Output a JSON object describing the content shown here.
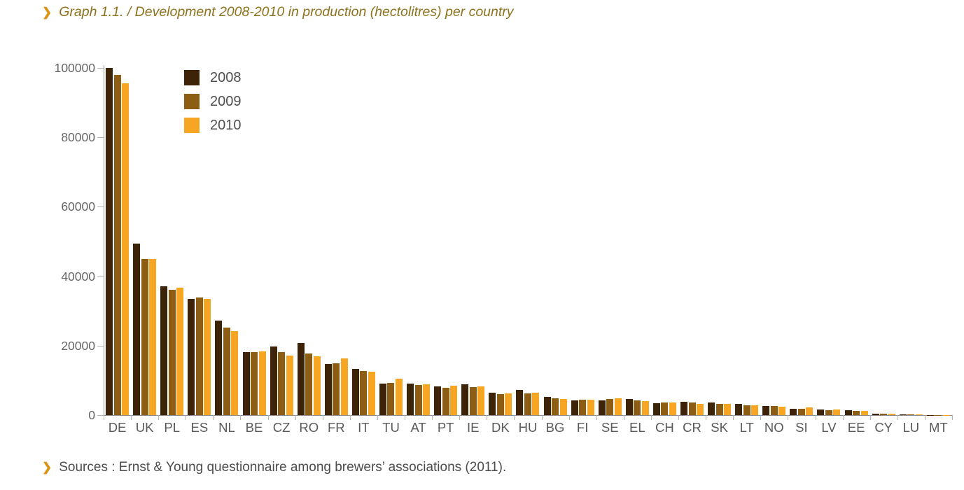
{
  "page": {
    "title_chevron": "❯",
    "title": "Graph 1.1. / Development 2008-2010 in production (hectolitres) per country",
    "sources_chevron": "❯",
    "sources": "Sources : Ernst & Young questionnaire among brewers’ associations (2011)."
  },
  "colors": {
    "accent_chevron": "#dd9215",
    "title_text": "#8e721c",
    "axis": "#8a8a8a",
    "tick": "#b5b5b5",
    "axis_label": "#5a5a5a"
  },
  "chart_data": {
    "type": "bar",
    "title": "Graph 1.1. / Development 2008-2010 in production (hectolitres) per country",
    "xlabel": "",
    "ylabel": "",
    "ylim": [
      0,
      100000
    ],
    "yticks": [
      0,
      20000,
      40000,
      60000,
      80000,
      100000
    ],
    "grid": false,
    "legend_position": "top-left-inside",
    "legend_entries": [
      "2008",
      "2009",
      "2010"
    ],
    "categories": [
      "DE",
      "UK",
      "PL",
      "ES",
      "NL",
      "BE",
      "CZ",
      "RO",
      "FR",
      "IT",
      "TU",
      "AT",
      "PT",
      "IE",
      "DK",
      "HU",
      "BG",
      "FI",
      "SE",
      "EL",
      "CH",
      "CR",
      "SK",
      "LT",
      "NO",
      "SI",
      "LV",
      "EE",
      "CY",
      "LU",
      "MT"
    ],
    "series": [
      {
        "name": "2008",
        "color": "#3d2409",
        "values": [
          100000,
          49400,
          37000,
          33500,
          27200,
          18100,
          19800,
          20700,
          14800,
          13300,
          9000,
          9000,
          8300,
          8900,
          6500,
          7200,
          5300,
          4300,
          4300,
          4700,
          3500,
          3800,
          3700,
          3300,
          2600,
          1900,
          1600,
          1500,
          450,
          300,
          100
        ]
      },
      {
        "name": "2009",
        "color": "#8c5d12",
        "values": [
          97900,
          45000,
          36100,
          33900,
          25300,
          18100,
          18200,
          17700,
          14900,
          12700,
          9300,
          8700,
          7800,
          8100,
          6000,
          6300,
          4800,
          4400,
          4700,
          4300,
          3600,
          3600,
          3200,
          2800,
          2600,
          1900,
          1500,
          1300,
          400,
          250,
          100
        ]
      },
      {
        "name": "2010",
        "color": "#f6a623",
        "values": [
          95600,
          45000,
          36700,
          33400,
          24200,
          18300,
          17100,
          16900,
          16400,
          12600,
          10400,
          8800,
          8500,
          8300,
          6300,
          6500,
          4700,
          4400,
          4900,
          4100,
          3600,
          3300,
          3200,
          2800,
          2500,
          2300,
          1700,
          1200,
          400,
          250,
          100
        ]
      }
    ]
  }
}
